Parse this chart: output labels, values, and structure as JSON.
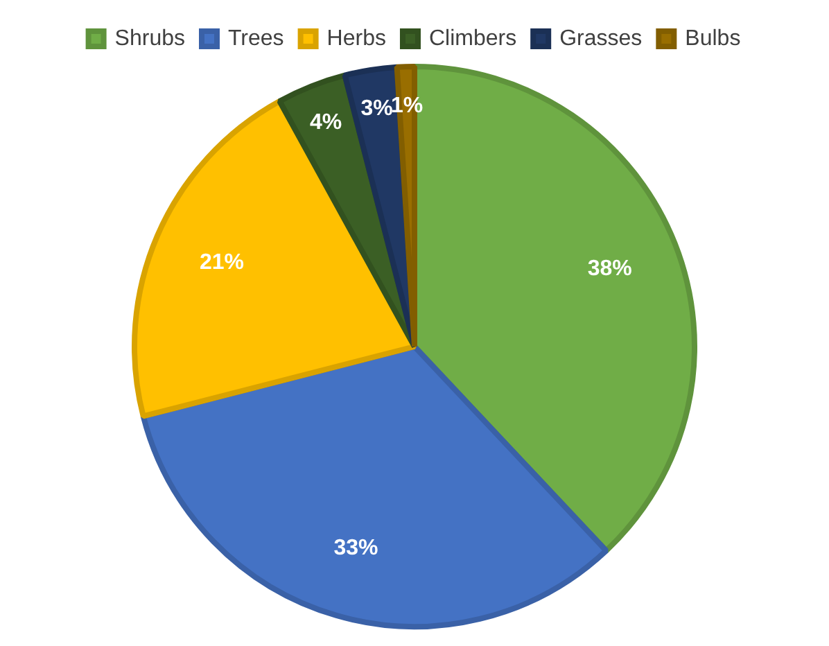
{
  "chart_data": {
    "type": "pie",
    "categories": [
      "Shrubs",
      "Trees",
      "Herbs",
      "Climbers",
      "Grasses",
      "Bulbs"
    ],
    "values": [
      38,
      33,
      21,
      4,
      3,
      1
    ],
    "colors": [
      "#70ad47",
      "#4472c4",
      "#ffc000",
      "#3b5f25",
      "#203864",
      "#996e00"
    ],
    "value_labels": [
      "38%",
      "33%",
      "21%",
      "4%",
      "3%",
      "1%"
    ],
    "legend": "top"
  }
}
